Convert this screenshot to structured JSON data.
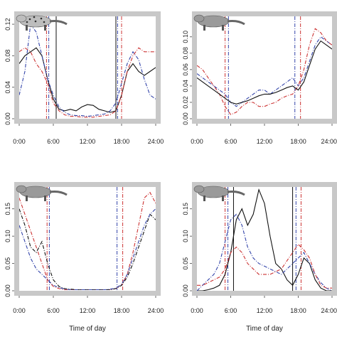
{
  "chart_data": [
    {
      "type": "line",
      "animal_icon": "spotted-cat-icon",
      "xlabel": "",
      "ylabel": "",
      "xlim": [
        0,
        24
      ],
      "ylim": [
        0,
        0.13
      ],
      "xticks": [
        0,
        6,
        12,
        18,
        24
      ],
      "xtick_labels": [
        "0:00",
        "6:00",
        "12:00",
        "18:00",
        "24:00"
      ],
      "yticks": [
        0,
        0.04,
        0.08,
        0.12
      ],
      "ytick_labels": [
        "0.00",
        "0.04",
        "0.08",
        "0.12"
      ],
      "twilight_lines": [
        {
          "x": 4.8,
          "color": "#cc3333",
          "style": "dashdot"
        },
        {
          "x": 5.2,
          "color": "#3344aa",
          "style": "dashdot"
        },
        {
          "x": 6.5,
          "color": "#111111",
          "style": "solid"
        },
        {
          "x": 17.0,
          "color": "#111111",
          "style": "solid"
        },
        {
          "x": 17.3,
          "color": "#3344aa",
          "style": "dashdot"
        },
        {
          "x": 18.0,
          "color": "#cc3333",
          "style": "dashdot"
        }
      ],
      "series": [
        {
          "color": "#111111",
          "style": "solid",
          "x": [
            0,
            1,
            2,
            3,
            4,
            5,
            6,
            7,
            8,
            9,
            10,
            11,
            12,
            13,
            14,
            15,
            16,
            17,
            18,
            19,
            20,
            21,
            22,
            23,
            24
          ],
          "y": [
            0.07,
            0.08,
            0.085,
            0.09,
            0.08,
            0.05,
            0.025,
            0.012,
            0.01,
            0.012,
            0.01,
            0.015,
            0.018,
            0.017,
            0.012,
            0.01,
            0.008,
            0.01,
            0.03,
            0.06,
            0.07,
            0.06,
            0.055,
            0.06,
            0.065
          ]
        },
        {
          "color": "#cc3333",
          "style": "dashdot",
          "x": [
            0,
            1,
            2,
            3,
            4,
            5,
            6,
            7,
            8,
            9,
            10,
            11,
            12,
            13,
            14,
            15,
            16,
            17,
            18,
            19,
            20,
            21,
            22,
            23,
            24
          ],
          "y": [
            0.085,
            0.09,
            0.085,
            0.07,
            0.06,
            0.045,
            0.02,
            0.01,
            0.005,
            0.003,
            0.003,
            0.002,
            0.002,
            0.002,
            0.003,
            0.004,
            0.005,
            0.01,
            0.03,
            0.06,
            0.08,
            0.09,
            0.085,
            0.085,
            0.085
          ]
        },
        {
          "color": "#3344aa",
          "style": "dashdot",
          "x": [
            0,
            1,
            2,
            3,
            4,
            5,
            6,
            7,
            8,
            9,
            10,
            11,
            12,
            13,
            14,
            15,
            16,
            17,
            18,
            19,
            20,
            21,
            22,
            23,
            24
          ],
          "y": [
            0.03,
            0.06,
            0.12,
            0.11,
            0.08,
            0.05,
            0.03,
            0.015,
            0.008,
            0.005,
            0.004,
            0.004,
            0.003,
            0.004,
            0.005,
            0.006,
            0.01,
            0.02,
            0.045,
            0.07,
            0.085,
            0.075,
            0.05,
            0.03,
            0.025
          ]
        }
      ]
    },
    {
      "type": "line",
      "animal_icon": "badger-icon",
      "xlabel": "",
      "ylabel": "",
      "xlim": [
        0,
        24
      ],
      "ylim": [
        0,
        0.125
      ],
      "xticks": [
        0,
        6,
        12,
        18,
        24
      ],
      "xtick_labels": [
        "0:00",
        "6:00",
        "12:00",
        "18:00",
        "24:00"
      ],
      "yticks": [
        0,
        0.02,
        0.04,
        0.06,
        0.08,
        0.1
      ],
      "ytick_labels": [
        "0.00",
        "0.02",
        "0.04",
        "0.06",
        "0.08",
        "0.10"
      ],
      "twilight_lines": [
        {
          "x": 5.0,
          "color": "#cc3333",
          "style": "dashdot"
        },
        {
          "x": 5.6,
          "color": "#3344aa",
          "style": "dashdot"
        },
        {
          "x": 17.4,
          "color": "#3344aa",
          "style": "dashdot"
        },
        {
          "x": 18.4,
          "color": "#cc3333",
          "style": "dashdot"
        }
      ],
      "series": [
        {
          "color": "#3344aa",
          "style": "dashdot",
          "x": [
            0,
            1,
            2,
            3,
            4,
            5,
            6,
            7,
            8,
            9,
            10,
            11,
            12,
            13,
            14,
            15,
            16,
            17,
            18,
            19,
            20,
            21,
            22,
            23,
            24
          ],
          "y": [
            0.055,
            0.05,
            0.045,
            0.04,
            0.035,
            0.03,
            0.02,
            0.015,
            0.02,
            0.025,
            0.03,
            0.035,
            0.035,
            0.03,
            0.035,
            0.04,
            0.045,
            0.05,
            0.04,
            0.05,
            0.07,
            0.09,
            0.1,
            0.095,
            0.09
          ]
        },
        {
          "color": "#cc3333",
          "style": "dashdot",
          "x": [
            0,
            1,
            2,
            3,
            4,
            5,
            6,
            7,
            8,
            9,
            10,
            11,
            12,
            13,
            14,
            15,
            16,
            17,
            18,
            19,
            20,
            21,
            22,
            23,
            24
          ],
          "y": [
            0.065,
            0.06,
            0.05,
            0.04,
            0.03,
            0.015,
            0.005,
            0.008,
            0.015,
            0.02,
            0.02,
            0.015,
            0.015,
            0.018,
            0.02,
            0.025,
            0.028,
            0.03,
            0.04,
            0.06,
            0.09,
            0.11,
            0.105,
            0.095,
            0.09
          ]
        },
        {
          "color": "#111111",
          "style": "solid",
          "x": [
            0,
            1,
            2,
            3,
            4,
            5,
            6,
            7,
            8,
            9,
            10,
            11,
            12,
            13,
            14,
            15,
            16,
            17,
            18,
            19,
            20,
            21,
            22,
            23,
            24
          ],
          "y": [
            0.05,
            0.045,
            0.04,
            0.035,
            0.03,
            0.025,
            0.02,
            0.018,
            0.02,
            0.022,
            0.025,
            0.028,
            0.03,
            0.03,
            0.032,
            0.035,
            0.038,
            0.04,
            0.035,
            0.045,
            0.065,
            0.085,
            0.095,
            0.09,
            0.085
          ]
        }
      ]
    },
    {
      "type": "line",
      "animal_icon": "civet-icon",
      "xlabel": "Time of day",
      "ylabel": "",
      "xlim": [
        0,
        24
      ],
      "ylim": [
        0,
        0.19
      ],
      "xticks": [
        0,
        6,
        12,
        18,
        24
      ],
      "xtick_labels": [
        "0:00",
        "6:00",
        "12:00",
        "18:00",
        "24:00"
      ],
      "yticks": [
        0,
        0.05,
        0.1,
        0.15
      ],
      "ytick_labels": [
        "0.00",
        "0.05",
        "0.10",
        "0.15"
      ],
      "twilight_lines": [
        {
          "x": 4.9,
          "color": "#cc3333",
          "style": "dashdot"
        },
        {
          "x": 5.3,
          "color": "#3344aa",
          "style": "dashdot"
        },
        {
          "x": 17.2,
          "color": "#3344aa",
          "style": "dashdot"
        },
        {
          "x": 18.2,
          "color": "#cc3333",
          "style": "dashdot"
        }
      ],
      "series": [
        {
          "color": "#cc3333",
          "style": "dashdot",
          "x": [
            0,
            1,
            2,
            3,
            4,
            5,
            6,
            7,
            8,
            9,
            10,
            11,
            12,
            13,
            14,
            15,
            16,
            17,
            18,
            19,
            20,
            21,
            22,
            23,
            24
          ],
          "y": [
            0.17,
            0.14,
            0.11,
            0.08,
            0.05,
            0.02,
            0.008,
            0.004,
            0.002,
            0.002,
            0.002,
            0.002,
            0.002,
            0.002,
            0.002,
            0.002,
            0.002,
            0.004,
            0.01,
            0.03,
            0.07,
            0.12,
            0.17,
            0.18,
            0.16
          ]
        },
        {
          "color": "#111111",
          "style": "dashdot",
          "x": [
            0,
            1,
            2,
            3,
            4,
            5,
            6,
            7,
            8,
            9,
            10,
            11,
            12,
            13,
            14,
            15,
            16,
            17,
            18,
            19,
            20,
            21,
            22,
            23,
            24
          ],
          "y": [
            0.15,
            0.12,
            0.08,
            0.07,
            0.09,
            0.05,
            0.02,
            0.008,
            0.004,
            0.003,
            0.002,
            0.002,
            0.002,
            0.002,
            0.002,
            0.002,
            0.002,
            0.004,
            0.01,
            0.025,
            0.05,
            0.08,
            0.11,
            0.14,
            0.13
          ]
        },
        {
          "color": "#3344aa",
          "style": "dashdot",
          "x": [
            0,
            1,
            2,
            3,
            4,
            5,
            6,
            7,
            8,
            9,
            10,
            11,
            12,
            13,
            14,
            15,
            16,
            17,
            18,
            19,
            20,
            21,
            22,
            23,
            24
          ],
          "y": [
            0.12,
            0.09,
            0.06,
            0.04,
            0.03,
            0.02,
            0.01,
            0.006,
            0.003,
            0.002,
            0.002,
            0.002,
            0.002,
            0.002,
            0.002,
            0.002,
            0.003,
            0.005,
            0.012,
            0.03,
            0.06,
            0.09,
            0.12,
            0.14,
            0.15
          ]
        }
      ]
    },
    {
      "type": "line",
      "animal_icon": "marten-icon",
      "xlabel": "Time of day",
      "ylabel": "",
      "xlim": [
        0,
        24
      ],
      "ylim": [
        0,
        0.19
      ],
      "xticks": [
        0,
        6,
        12,
        18,
        24
      ],
      "xtick_labels": [
        "0:00",
        "6:00",
        "12:00",
        "18:00",
        "24:00"
      ],
      "yticks": [
        0,
        0.05,
        0.1,
        0.15
      ],
      "ytick_labels": [
        "0.00",
        "0.05",
        "0.10",
        "0.15"
      ],
      "twilight_lines": [
        {
          "x": 5.0,
          "color": "#cc3333",
          "style": "dashdot"
        },
        {
          "x": 5.5,
          "color": "#3344aa",
          "style": "dashdot"
        },
        {
          "x": 6.5,
          "color": "#111111",
          "style": "solid"
        },
        {
          "x": 17.0,
          "color": "#111111",
          "style": "solid"
        },
        {
          "x": 17.6,
          "color": "#3344aa",
          "style": "dashdot"
        },
        {
          "x": 18.5,
          "color": "#cc3333",
          "style": "dashdot"
        }
      ],
      "series": [
        {
          "color": "#111111",
          "style": "solid",
          "x": [
            0,
            1,
            2,
            3,
            4,
            5,
            6,
            7,
            8,
            9,
            10,
            11,
            12,
            13,
            14,
            15,
            16,
            17,
            18,
            19,
            20,
            21,
            22,
            23,
            24
          ],
          "y": [
            0.0,
            0.0,
            0.002,
            0.005,
            0.01,
            0.03,
            0.07,
            0.13,
            0.15,
            0.12,
            0.14,
            0.185,
            0.16,
            0.1,
            0.05,
            0.04,
            0.02,
            0.01,
            0.03,
            0.06,
            0.05,
            0.02,
            0.005,
            0.0,
            0.0
          ]
        },
        {
          "color": "#3344aa",
          "style": "dashdot",
          "x": [
            0,
            1,
            2,
            3,
            4,
            5,
            6,
            7,
            8,
            9,
            10,
            11,
            12,
            13,
            14,
            15,
            16,
            17,
            18,
            19,
            20,
            21,
            22,
            23,
            24
          ],
          "y": [
            0.0,
            0.01,
            0.02,
            0.03,
            0.05,
            0.09,
            0.13,
            0.14,
            0.12,
            0.08,
            0.06,
            0.05,
            0.045,
            0.04,
            0.035,
            0.03,
            0.04,
            0.05,
            0.06,
            0.07,
            0.05,
            0.03,
            0.015,
            0.005,
            0.0
          ]
        },
        {
          "color": "#cc3333",
          "style": "dashdot",
          "x": [
            0,
            1,
            2,
            3,
            4,
            5,
            6,
            7,
            8,
            9,
            10,
            11,
            12,
            13,
            14,
            15,
            16,
            17,
            18,
            19,
            20,
            21,
            22,
            23,
            24
          ],
          "y": [
            0.01,
            0.01,
            0.015,
            0.02,
            0.025,
            0.04,
            0.07,
            0.08,
            0.07,
            0.05,
            0.04,
            0.03,
            0.03,
            0.03,
            0.035,
            0.04,
            0.055,
            0.07,
            0.085,
            0.075,
            0.06,
            0.03,
            0.01,
            0.005,
            0.005
          ]
        }
      ]
    }
  ]
}
